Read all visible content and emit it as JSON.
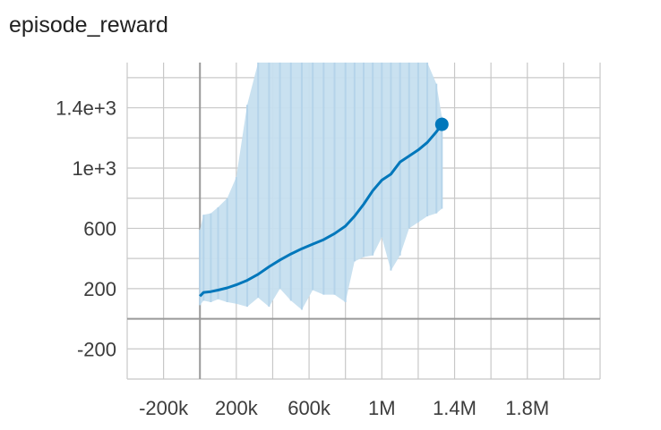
{
  "chart_data": {
    "type": "line",
    "title": "episode_reward",
    "xlabel": "",
    "ylabel": "",
    "xlim": [
      -400000,
      2200000
    ],
    "ylim": [
      -400,
      1700
    ],
    "x_ticks": [
      -200000,
      200000,
      600000,
      1000000,
      1400000,
      1800000
    ],
    "x_tick_labels": [
      "-200k",
      "200k",
      "600k",
      "1M",
      "1.4M",
      "1.8M"
    ],
    "y_ticks": [
      -200,
      200,
      600,
      1000,
      1400
    ],
    "y_tick_labels": [
      "-200",
      "200",
      "600",
      "1e+3",
      "1.4e+3"
    ],
    "grid": true,
    "colors": {
      "smoothed": "#0077bb",
      "raw": "#c6dfef",
      "grid": "#c8c8c8",
      "zero_axis": "#999999"
    },
    "series": [
      {
        "values_role": "smoothed",
        "x": [
          0,
          20000,
          60000,
          100000,
          150000,
          200000,
          260000,
          320000,
          380000,
          440000,
          500000,
          560000,
          620000,
          680000,
          740000,
          800000,
          850000,
          900000,
          950000,
          1000000,
          1050000,
          1100000,
          1150000,
          1200000,
          1250000,
          1300000,
          1330000
        ],
        "y": [
          150,
          175,
          180,
          190,
          205,
          225,
          255,
          295,
          345,
          390,
          430,
          465,
          495,
          525,
          565,
          615,
          680,
          760,
          850,
          920,
          960,
          1040,
          1080,
          1120,
          1170,
          1240,
          1290
        ]
      },
      {
        "values_role": "raw",
        "x": [
          0,
          20000,
          60000,
          100000,
          150000,
          200000,
          260000,
          320000,
          380000,
          440000,
          500000,
          560000,
          620000,
          680000,
          740000,
          800000,
          850000,
          900000,
          950000,
          1000000,
          1050000,
          1100000,
          1150000,
          1200000,
          1250000,
          1300000,
          1330000
        ],
        "y_low": [
          90,
          120,
          110,
          130,
          110,
          100,
          80,
          140,
          80,
          200,
          120,
          60,
          190,
          160,
          160,
          110,
          380,
          410,
          420,
          540,
          320,
          420,
          600,
          640,
          680,
          700,
          730
        ],
        "y_high": [
          590,
          690,
          700,
          740,
          800,
          940,
          1420,
          1700,
          1700,
          1700,
          1700,
          1700,
          1700,
          1700,
          1700,
          1700,
          1700,
          1700,
          1700,
          1700,
          1700,
          1700,
          1700,
          1700,
          1700,
          1560,
          1340
        ]
      }
    ],
    "last_point": {
      "x": 1330000,
      "y": 1290
    }
  }
}
